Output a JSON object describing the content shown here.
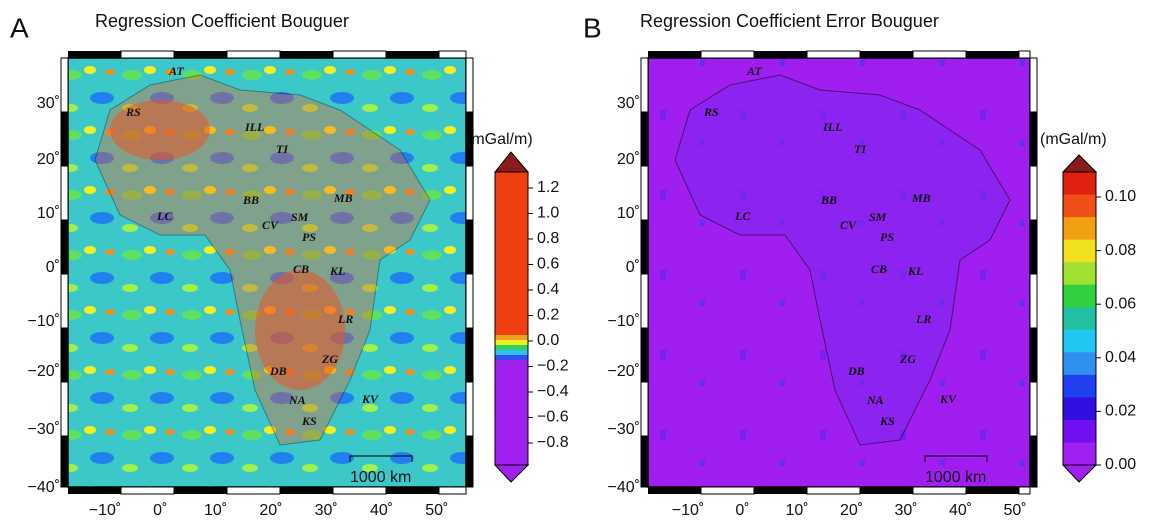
{
  "panels": [
    {
      "letter": "A",
      "title": "Regression Coefficient Bouguer",
      "unit": "(mGal/m)",
      "scale": "1000 km",
      "lat_labels": [
        "30˚",
        "20˚",
        "10˚",
        "0˚",
        "−10˚",
        "−20˚",
        "−30˚",
        "−40˚"
      ],
      "lon_labels": [
        "−10˚",
        "0˚",
        "10˚",
        "20˚",
        "30˚",
        "40˚",
        "50˚"
      ],
      "colorbar_labels": [
        "1.2",
        "1.0",
        "0.8",
        "0.6",
        "0.4",
        "0.2",
        "0.0",
        "−0.2",
        "−0.4",
        "−0.6",
        "−0.8"
      ],
      "regions": [
        "AT",
        "RS",
        "ILL",
        "TI",
        "MB",
        "BB",
        "SM",
        "CV",
        "PS",
        "LC",
        "CB",
        "KL",
        "LR",
        "DB",
        "ZG",
        "NA",
        "KS",
        "KV"
      ]
    },
    {
      "letter": "B",
      "title": "Regression Coefficient Error Bouguer",
      "unit": "(mGal/m)",
      "scale": "1000 km",
      "lat_labels": [
        "30˚",
        "20˚",
        "10˚",
        "0˚",
        "−10˚",
        "−20˚",
        "−30˚",
        "−40˚"
      ],
      "lon_labels": [
        "−10˚",
        "0˚",
        "10˚",
        "20˚",
        "30˚",
        "40˚",
        "50˚"
      ],
      "colorbar_labels": [
        "0.10",
        "0.08",
        "0.06",
        "0.04",
        "0.02",
        "0.00"
      ],
      "regions": [
        "AT",
        "RS",
        "ILL",
        "TI",
        "MB",
        "BB",
        "SM",
        "CV",
        "PS",
        "LC",
        "CB",
        "KL",
        "LR",
        "DB",
        "ZG",
        "NA",
        "KS",
        "KV"
      ]
    }
  ]
}
